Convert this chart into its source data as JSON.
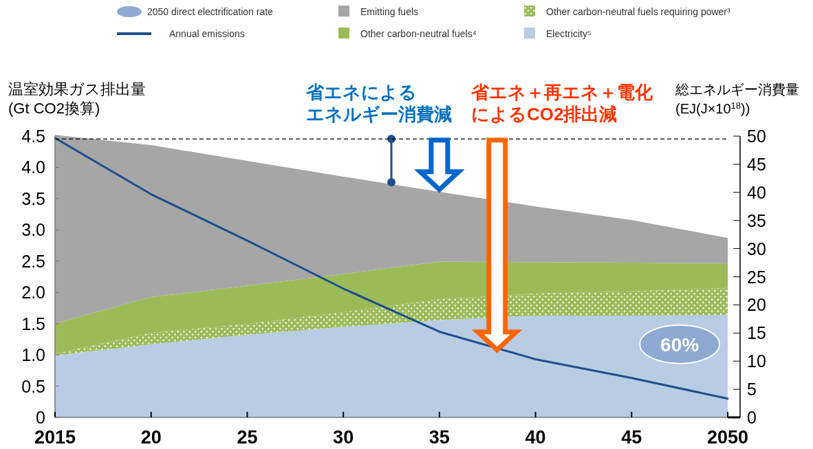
{
  "chart_data": {
    "type": "area",
    "stacked": true,
    "x": [
      2015,
      2020,
      2025,
      2030,
      2035,
      2040,
      2045,
      2050
    ],
    "xlim": [
      2015,
      2050
    ],
    "xticks": [
      2015,
      {
        "value": 2020,
        "label": "20"
      },
      {
        "value": 2025,
        "label": "25"
      },
      {
        "value": 2030,
        "label": "30"
      },
      {
        "value": 2035,
        "label": "35"
      },
      {
        "value": 2040,
        "label": "40"
      },
      {
        "value": 2045,
        "label": "45"
      },
      2050
    ],
    "ylabel": "温室効果ガス排出量\n(Gt CO2換算)",
    "y2label": "総エネルギー消費量\n(EJ(J×10$^{18}$))",
    "ylim": [
      0,
      4.5
    ],
    "yticks": [
      0,
      0.5,
      {
        "value": 1,
        "label": "1.0"
      },
      1.5,
      {
        "value": 2,
        "label": "2.0"
      },
      2.5,
      {
        "value": 3,
        "label": "3.0"
      },
      3.5,
      {
        "value": 4,
        "label": "4.0"
      },
      4.5
    ],
    "y2lim": [
      0,
      50
    ],
    "y2ticks": [
      0,
      5,
      10,
      15,
      20,
      25,
      30,
      35,
      40,
      45,
      50
    ],
    "series": [
      {
        "name": "Electricity⁵",
        "type": "area",
        "axis": "y2",
        "color": "#b8cce4",
        "values": [
          11.0,
          13.0,
          14.7,
          16.1,
          17.3,
          18.1,
          18.1,
          18.2
        ]
      },
      {
        "name": "Other carbon-neutral fuels requiring power³",
        "type": "area",
        "axis": "y2",
        "color": "#9bbb59",
        "values": [
          0.3,
          2.0,
          1.9,
          2.6,
          3.7,
          3.9,
          4.3,
          4.8
        ]
      },
      {
        "name": "Other carbon-neutral fuels⁴",
        "type": "area",
        "axis": "y2",
        "color": "#9bbb59",
        "values": [
          5.4,
          6.4,
          6.8,
          6.8,
          6.7,
          5.6,
          5.1,
          4.4
        ]
      },
      {
        "name": "Emitting fuels",
        "type": "area",
        "axis": "y2",
        "color": "#a6a6a6",
        "values": [
          33.5,
          27.0,
          22.2,
          17.3,
          12.4,
          9.9,
          7.6,
          4.5
        ]
      },
      {
        "name": "Annual emissions",
        "type": "line",
        "axis": "y",
        "color": "#1f4e8c",
        "values": [
          4.47,
          3.57,
          2.83,
          2.06,
          1.37,
          0.93,
          0.63,
          0.3
        ]
      },
      {
        "type": "line",
        "axis": "y2",
        "color": "#1f4e8c",
        "marker": "circle",
        "x": [
          2032.5,
          2032.5
        ],
        "values": [
          49.5,
          41.8
        ]
      }
    ],
    "ref_lines": [
      {
        "axis": "y2",
        "value": 49.5,
        "color": "#000000",
        "line_style": "dashed"
      }
    ],
    "annotations": [
      "省エネによる",
      "エネルギー消費減",
      "省エネ＋再エネ＋電化",
      "によるCO2排出減",
      "2050 direct electrification rate",
      "60%"
    ],
    "legend": "top",
    "grid": false
  }
}
